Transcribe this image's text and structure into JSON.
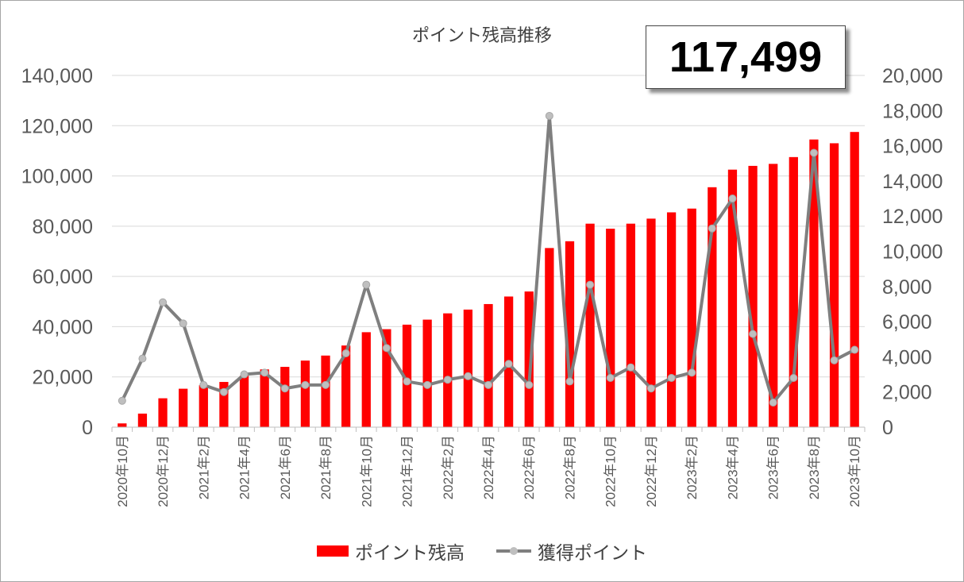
{
  "chart_data": {
    "type": "bar+line",
    "title": "ポイント残高推移",
    "highlight_value": "117,499",
    "categories": [
      "2020年10月",
      "2020年11月",
      "2020年12月",
      "2021年1月",
      "2021年2月",
      "2021年3月",
      "2021年4月",
      "2021年5月",
      "2021年6月",
      "2021年7月",
      "2021年8月",
      "2021年9月",
      "2021年10月",
      "2021年11月",
      "2021年12月",
      "2022年1月",
      "2022年2月",
      "2022年3月",
      "2022年4月",
      "2022年5月",
      "2022年6月",
      "2022年7月",
      "2022年8月",
      "2022年9月",
      "2022年10月",
      "2022年11月",
      "2022年12月",
      "2023年1月",
      "2023年2月",
      "2023年3月",
      "2023年4月",
      "2023年5月",
      "2023年6月",
      "2023年7月",
      "2023年8月",
      "2023年9月",
      "2023年10月"
    ],
    "tick_labels": [
      "2020年10月",
      "2020年12月",
      "2021年2月",
      "2021年4月",
      "2021年6月",
      "2021年8月",
      "2021年10月",
      "2021年12月",
      "2022年2月",
      "2022年4月",
      "2022年6月",
      "2022年8月",
      "2022年10月",
      "2022年12月",
      "2023年2月",
      "2023年4月",
      "2023年6月",
      "2023年8月",
      "2023年10月"
    ],
    "series": [
      {
        "name": "ポイント残高",
        "type": "bar",
        "axis": "left",
        "color": "#ff0000",
        "values": [
          1500,
          5400,
          11500,
          15300,
          16700,
          18000,
          20500,
          23000,
          24000,
          26500,
          28500,
          32500,
          37800,
          39000,
          40800,
          42800,
          45300,
          46800,
          49000,
          52000,
          54000,
          71300,
          74000,
          81000,
          79000,
          81000,
          83000,
          85500,
          87000,
          95500,
          102500,
          104000,
          104800,
          107500,
          114500,
          113000,
          117499
        ]
      },
      {
        "name": "獲得ポイント",
        "type": "line",
        "axis": "right",
        "color": "#7f7f7f",
        "marker_color": "#bfbfbf",
        "values": [
          1500,
          3900,
          7100,
          5900,
          2400,
          2000,
          3000,
          3100,
          2200,
          2400,
          2400,
          4200,
          8100,
          4500,
          2600,
          2400,
          2700,
          2900,
          2400,
          3600,
          2400,
          17700,
          2600,
          8100,
          2800,
          3400,
          2200,
          2800,
          3100,
          11300,
          13000,
          5300,
          1400,
          2800,
          15600,
          3800,
          4400
        ]
      }
    ],
    "y_left": {
      "min": 0,
      "max": 140000,
      "step": 20000,
      "tick_labels": [
        "0",
        "20,000",
        "40,000",
        "60,000",
        "80,000",
        "100,000",
        "120,000",
        "140,000"
      ]
    },
    "y_right": {
      "min": 0,
      "max": 20000,
      "step": 2000,
      "tick_labels": [
        "0",
        "2,000",
        "4,000",
        "6,000",
        "8,000",
        "10,000",
        "12,000",
        "14,000",
        "16,000",
        "18,000",
        "20,000"
      ]
    },
    "grid": true,
    "legend": "bottom",
    "xlabel": "",
    "ylabel": ""
  }
}
